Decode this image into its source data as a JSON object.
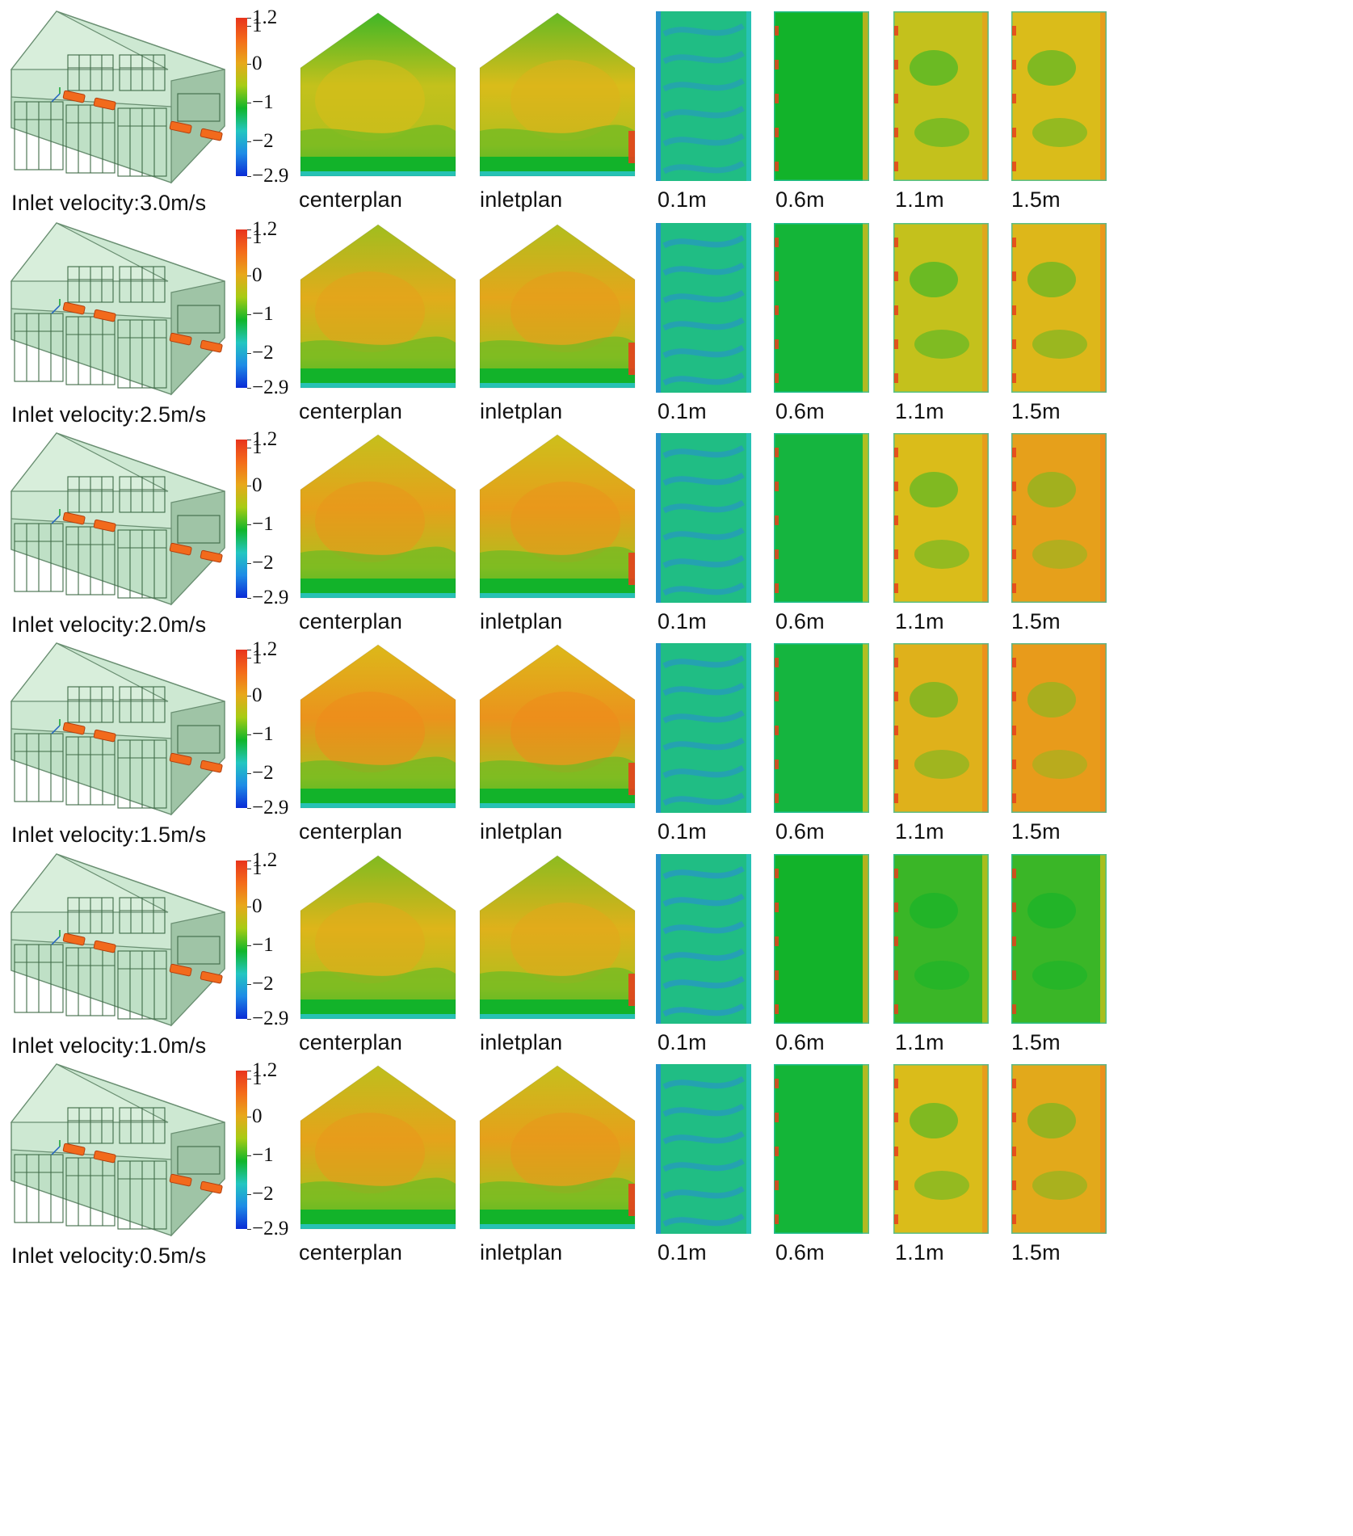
{
  "figure": {
    "colorbar": {
      "ticks": [
        "1.2",
        "1",
        "0",
        "−1",
        "−2",
        "−2.9"
      ],
      "tick_values": [
        1.2,
        1,
        0,
        -1,
        -2,
        -2.9
      ],
      "range": [
        -2.9,
        1.2
      ],
      "colors": [
        "#0a2bd6",
        "#1e8be6",
        "#23c6c0",
        "#10b52a",
        "#a6cc14",
        "#e8a81a",
        "#f46c1a",
        "#e8341c"
      ]
    },
    "rows": [
      {
        "label": "Inlet velocity:3.0m/s",
        "sections": {
          "center": "centerplan",
          "inlet": "inletplan"
        },
        "heights": [
          "0.1m",
          "0.6m",
          "1.1m",
          "1.5m"
        ],
        "levels": {
          "center": 0.45,
          "inlet": 0.55,
          "h1": 0.55,
          "h2": 0.3,
          "h3": 0.45,
          "h4": 0.55
        }
      },
      {
        "label": "Inlet velocity:2.5m/s",
        "sections": {
          "center": "centerplan",
          "inlet": "inletplan"
        },
        "heights": [
          "0.1m",
          "0.6m",
          "1.1m",
          "1.5m"
        ],
        "levels": {
          "center": 0.7,
          "inlet": 0.75,
          "h1": 0.45,
          "h2": 0.2,
          "h3": 0.45,
          "h4": 0.6
        }
      },
      {
        "label": "Inlet velocity:2.0m/s",
        "sections": {
          "center": "centerplan",
          "inlet": "inletplan"
        },
        "heights": [
          "0.1m",
          "0.6m",
          "1.1m",
          "1.5m"
        ],
        "levels": {
          "center": 0.8,
          "inlet": 0.82,
          "h1": 0.45,
          "h2": 0.15,
          "h3": 0.55,
          "h4": 0.8
        }
      },
      {
        "label": "Inlet velocity:1.5m/s",
        "sections": {
          "center": "centerplan",
          "inlet": "inletplan"
        },
        "heights": [
          "0.1m",
          "0.6m",
          "1.1m",
          "1.5m"
        ],
        "levels": {
          "center": 0.92,
          "inlet": 0.92,
          "h1": 0.45,
          "h2": 0.15,
          "h3": 0.65,
          "h4": 0.85
        }
      },
      {
        "label": "Inlet velocity:1.0m/s",
        "sections": {
          "center": "centerplan",
          "inlet": "inletplan"
        },
        "heights": [
          "0.1m",
          "0.6m",
          "1.1m",
          "1.5m"
        ],
        "levels": {
          "center": 0.62,
          "inlet": 0.65,
          "h1": 0.35,
          "h2": 0.3,
          "h3": 0.1,
          "h4": 0.1
        }
      },
      {
        "label": "Inlet velocity:0.5m/s",
        "sections": {
          "center": "centerplan",
          "inlet": "inletplan"
        },
        "heights": [
          "0.1m",
          "0.6m",
          "1.1m",
          "1.5m"
        ],
        "levels": {
          "center": 0.78,
          "inlet": 0.8,
          "h1": 0.45,
          "h2": 0.2,
          "h3": 0.55,
          "h4": 0.72
        }
      }
    ]
  }
}
